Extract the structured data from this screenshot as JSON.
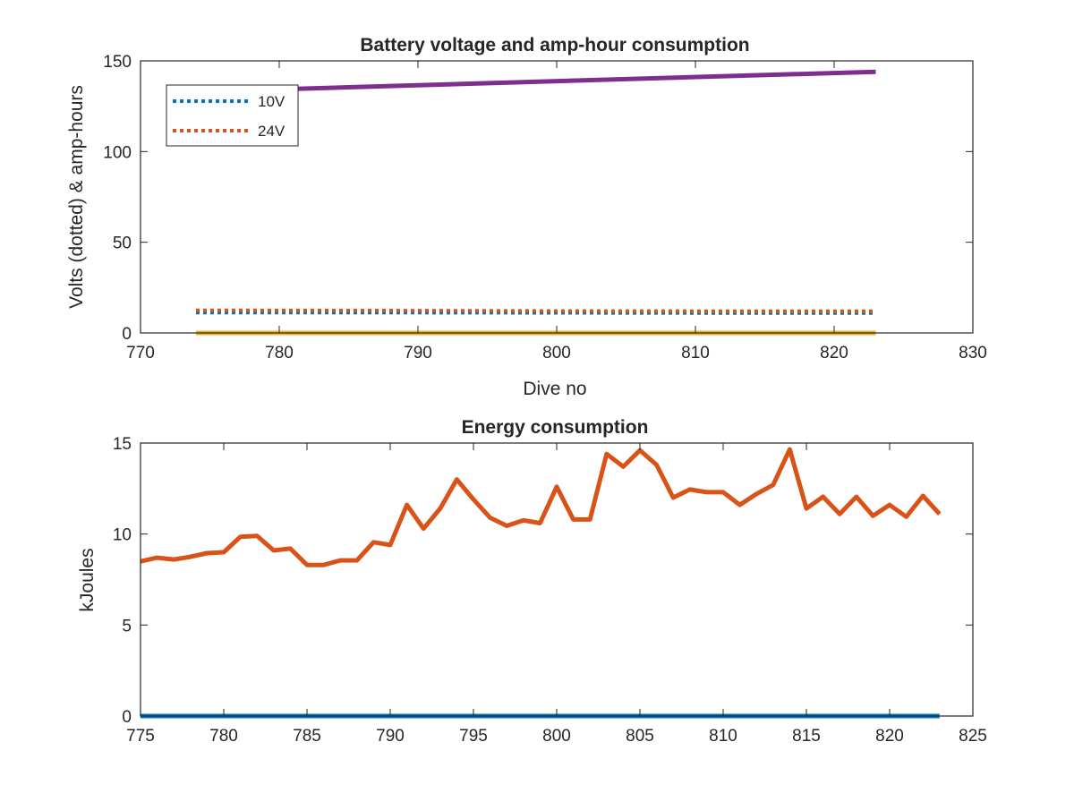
{
  "chart_data": [
    {
      "type": "line",
      "title": "Battery voltage and amp-hour consumption",
      "xlabel": "Dive no",
      "ylabel": "Volts (dotted) & amp-hours",
      "xlim": [
        770,
        830
      ],
      "ylim": [
        0,
        150
      ],
      "xticks": [
        "770",
        "780",
        "790",
        "800",
        "810",
        "820",
        "830"
      ],
      "yticks": [
        "0",
        "50",
        "100",
        "150"
      ],
      "legend_position": "top-left",
      "series": [
        {
          "name": "10V",
          "style": "dotted",
          "color": "#0072BD",
          "x": [
            774,
            790,
            800,
            810,
            823
          ],
          "y": [
            11.2,
            11.2,
            11.1,
            11.0,
            11.0
          ]
        },
        {
          "name": "24V",
          "style": "dotted",
          "color": "#D95319",
          "x": [
            774,
            790,
            800,
            810,
            823
          ],
          "y": [
            12.5,
            12.3,
            12.1,
            12.0,
            12.0
          ]
        },
        {
          "style": "solid",
          "color": "#EDB120",
          "x": [
            774,
            823
          ],
          "y": [
            0,
            0
          ]
        },
        {
          "style": "solid",
          "color": "#7E2F8E",
          "x": [
            774,
            823
          ],
          "y": [
            133,
            144
          ]
        }
      ]
    },
    {
      "type": "line",
      "title": "Energy consumption",
      "xlabel": "",
      "ylabel": "kJoules",
      "xlim": [
        775,
        825
      ],
      "ylim": [
        0,
        15
      ],
      "xticks": [
        "775",
        "780",
        "785",
        "790",
        "795",
        "800",
        "805",
        "810",
        "815",
        "820",
        "825"
      ],
      "yticks": [
        "0",
        "5",
        "10",
        "15"
      ],
      "series": [
        {
          "style": "solid",
          "color": "#0072BD",
          "x": [
            775,
            823
          ],
          "y": [
            0,
            0
          ]
        },
        {
          "style": "solid",
          "color": "#D95319",
          "x": [
            775,
            776,
            777,
            778,
            779,
            780,
            781,
            782,
            783,
            784,
            785,
            786,
            787,
            788,
            789,
            790,
            791,
            792,
            793,
            794,
            795,
            796,
            797,
            798,
            799,
            800,
            801,
            802,
            803,
            804,
            805,
            806,
            807,
            808,
            809,
            810,
            811,
            812,
            813,
            814,
            815,
            816,
            817,
            818,
            819,
            820,
            821,
            822,
            823
          ],
          "y": [
            8.5,
            8.7,
            8.6,
            8.75,
            8.95,
            9.0,
            9.85,
            9.9,
            9.1,
            9.2,
            8.3,
            8.3,
            8.55,
            8.55,
            9.55,
            9.4,
            11.6,
            10.3,
            11.4,
            13.0,
            11.9,
            10.9,
            10.45,
            10.75,
            10.6,
            12.6,
            10.8,
            10.8,
            14.4,
            13.7,
            14.6,
            13.8,
            12.0,
            12.45,
            12.3,
            12.3,
            11.6,
            12.2,
            12.7,
            14.65,
            11.4,
            12.05,
            11.1,
            12.05,
            11.0,
            11.6,
            10.95,
            12.1,
            11.1
          ]
        }
      ]
    }
  ]
}
